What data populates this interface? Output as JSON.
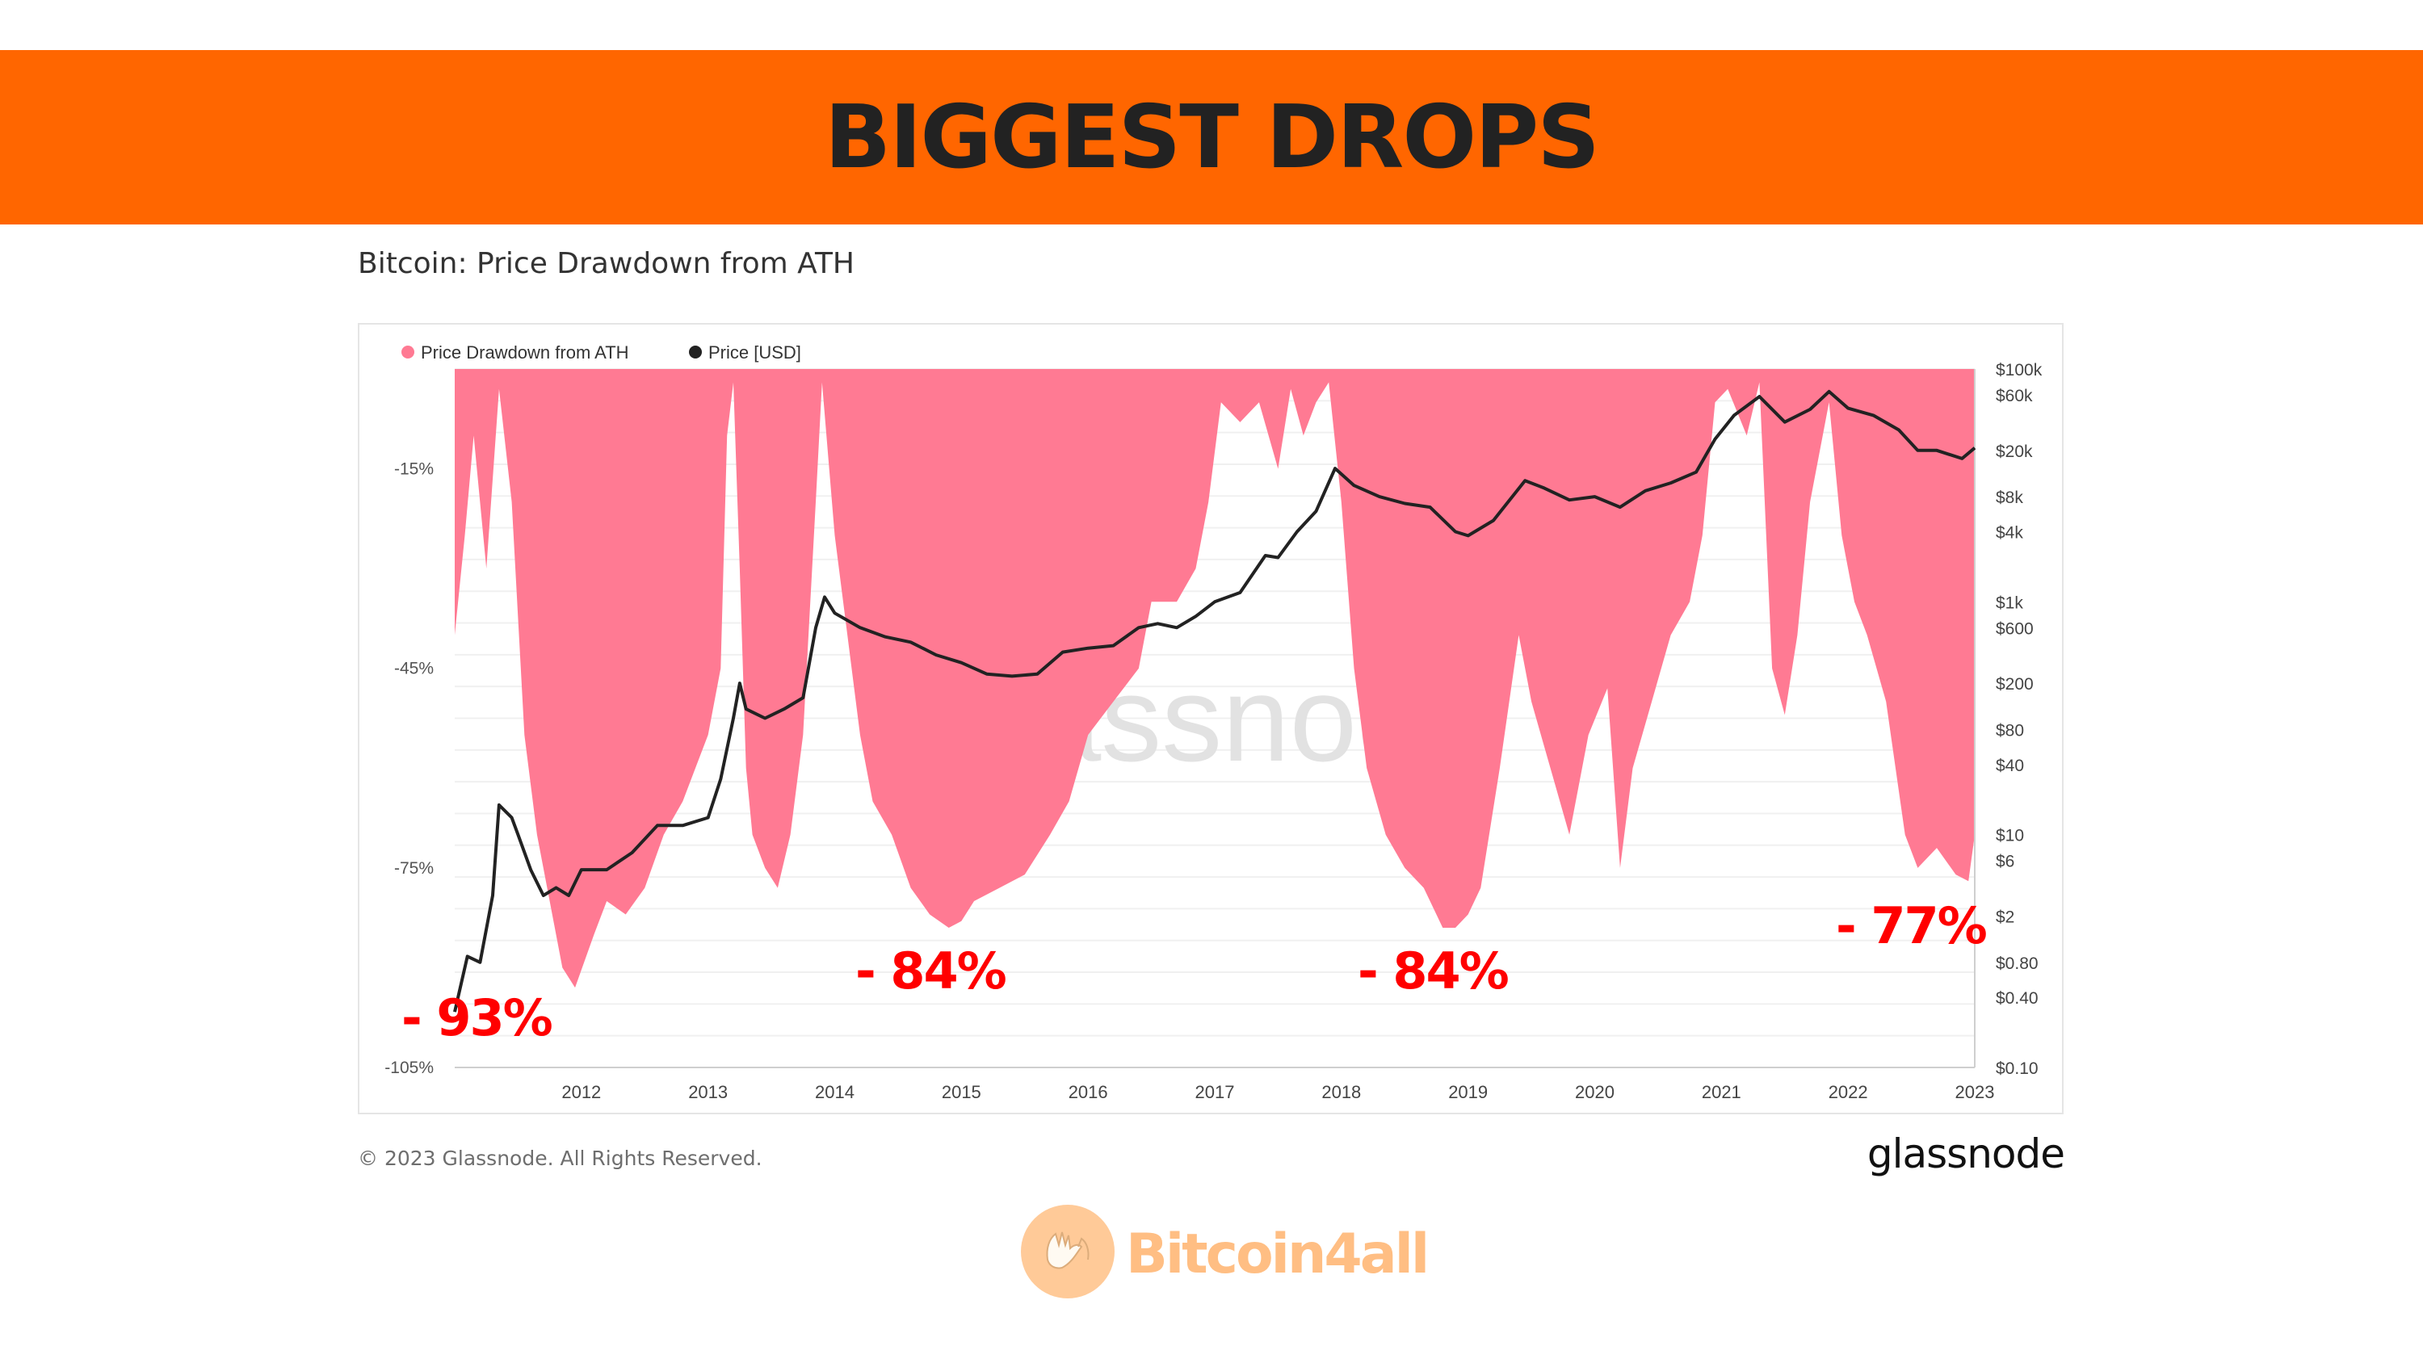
{
  "banner": {
    "title": "BIGGEST DROPS"
  },
  "chart": {
    "subtitle": "Bitcoin: Price Drawdown from ATH",
    "watermark": "glassnode",
    "legend": [
      {
        "label": "Price Drawdown from ATH",
        "color": "#ff7a93"
      },
      {
        "label": "Price [USD]",
        "color": "#222222"
      }
    ],
    "drawdown_labels": [
      "- 93%",
      "- 84%",
      "- 84%",
      "- 77%"
    ]
  },
  "footer": {
    "copyright": "© 2023 Glassnode. All Rights Reserved.",
    "brand": "glassnode"
  },
  "bottom_logo": {
    "text": "Bitcoin4all",
    "icon": "hands-icon"
  },
  "colors": {
    "banner": "#ff6600",
    "drawdown_fill": "#ff7a93",
    "price_line": "#222222",
    "annotation": "#ff0000",
    "logo": "#ff8a1f"
  },
  "chart_data": {
    "type": "area",
    "title": "Bitcoin: Price Drawdown from ATH",
    "xlabel": "",
    "ylabel": "",
    "x_ticks": [
      "2012",
      "2013",
      "2014",
      "2015",
      "2016",
      "2017",
      "2018",
      "2019",
      "2020",
      "2021",
      "2022",
      "2023"
    ],
    "y_left_ticks": [
      "-15%",
      "-45%",
      "-75%",
      "-105%"
    ],
    "y_left_range": [
      -105,
      0
    ],
    "y_right_ticks": [
      "$100k",
      "$60k",
      "$20k",
      "$8k",
      "$4k",
      "$1k",
      "$600",
      "$200",
      "$80",
      "$40",
      "$10",
      "$6",
      "$2",
      "$0.80",
      "$0.40",
      "$0.10"
    ],
    "y_right_range": [
      0.1,
      100000
    ],
    "y_right_scale": "log",
    "grid": true,
    "legend_position": "top-left",
    "series": [
      {
        "name": "Price Drawdown from ATH",
        "axis": "left",
        "type": "area",
        "x": [
          2011.0,
          2011.08,
          2011.15,
          2011.25,
          2011.35,
          2011.45,
          2011.55,
          2011.65,
          2011.75,
          2011.85,
          2011.95,
          2012.1,
          2012.2,
          2012.35,
          2012.5,
          2012.65,
          2012.8,
          2012.9,
          2013.0,
          2013.1,
          2013.15,
          2013.2,
          2013.25,
          2013.3,
          2013.35,
          2013.45,
          2013.55,
          2013.65,
          2013.75,
          2013.85,
          2013.9,
          2014.0,
          2014.1,
          2014.2,
          2014.3,
          2014.45,
          2014.6,
          2014.75,
          2014.9,
          2015.0,
          2015.1,
          2015.3,
          2015.5,
          2015.7,
          2015.85,
          2016.0,
          2016.2,
          2016.4,
          2016.5,
          2016.7,
          2016.85,
          2016.95,
          2017.05,
          2017.2,
          2017.35,
          2017.5,
          2017.6,
          2017.7,
          2017.8,
          2017.9,
          2018.0,
          2018.1,
          2018.2,
          2018.35,
          2018.5,
          2018.65,
          2018.8,
          2018.9,
          2019.0,
          2019.1,
          2019.25,
          2019.4,
          2019.5,
          2019.65,
          2019.8,
          2019.95,
          2020.1,
          2020.2,
          2020.3,
          2020.45,
          2020.6,
          2020.75,
          2020.85,
          2020.95,
          2021.05,
          2021.2,
          2021.3,
          2021.4,
          2021.5,
          2021.6,
          2021.7,
          2021.85,
          2021.95,
          2022.05,
          2022.15,
          2022.3,
          2022.45,
          2022.55,
          2022.7,
          2022.85,
          2022.95,
          2023.0
        ],
        "values": [
          -40,
          -25,
          -10,
          -30,
          -3,
          -20,
          -55,
          -70,
          -80,
          -90,
          -93,
          -85,
          -80,
          -82,
          -78,
          -70,
          -65,
          -60,
          -55,
          -45,
          -10,
          -2,
          -30,
          -60,
          -70,
          -75,
          -78,
          -70,
          -55,
          -20,
          -2,
          -25,
          -40,
          -55,
          -65,
          -70,
          -78,
          -82,
          -84,
          -83,
          -80,
          -78,
          -76,
          -70,
          -65,
          -55,
          -50,
          -45,
          -35,
          -35,
          -30,
          -20,
          -5,
          -8,
          -5,
          -15,
          -3,
          -10,
          -5,
          -2,
          -20,
          -45,
          -60,
          -70,
          -75,
          -78,
          -84,
          -84,
          -82,
          -78,
          -60,
          -40,
          -50,
          -60,
          -70,
          -55,
          -48,
          -75,
          -60,
          -50,
          -40,
          -35,
          -25,
          -5,
          -3,
          -10,
          -2,
          -45,
          -52,
          -40,
          -20,
          -5,
          -25,
          -35,
          -40,
          -50,
          -70,
          -75,
          -72,
          -76,
          -77,
          -70
        ]
      },
      {
        "name": "Price [USD]",
        "axis": "right",
        "type": "line",
        "x": [
          2011.0,
          2011.1,
          2011.2,
          2011.3,
          2011.35,
          2011.45,
          2011.5,
          2011.6,
          2011.7,
          2011.8,
          2011.9,
          2012.0,
          2012.2,
          2012.4,
          2012.6,
          2012.8,
          2013.0,
          2013.1,
          2013.2,
          2013.25,
          2013.3,
          2013.45,
          2013.6,
          2013.75,
          2013.85,
          2013.92,
          2014.0,
          2014.2,
          2014.4,
          2014.6,
          2014.8,
          2015.0,
          2015.2,
          2015.4,
          2015.6,
          2015.8,
          2016.0,
          2016.2,
          2016.4,
          2016.55,
          2016.7,
          2016.85,
          2017.0,
          2017.2,
          2017.4,
          2017.5,
          2017.65,
          2017.8,
          2017.95,
          2018.1,
          2018.3,
          2018.5,
          2018.7,
          2018.9,
          2019.0,
          2019.2,
          2019.45,
          2019.6,
          2019.8,
          2020.0,
          2020.2,
          2020.4,
          2020.6,
          2020.8,
          2020.95,
          2021.1,
          2021.3,
          2021.5,
          2021.7,
          2021.85,
          2022.0,
          2022.2,
          2022.4,
          2022.55,
          2022.7,
          2022.9,
          2023.0
        ],
        "values": [
          0.3,
          0.9,
          0.8,
          3,
          18,
          14,
          10,
          5,
          3,
          3.5,
          3,
          5,
          5,
          7,
          12,
          12,
          14,
          30,
          100,
          200,
          120,
          100,
          120,
          150,
          600,
          1100,
          800,
          600,
          500,
          450,
          350,
          300,
          240,
          230,
          240,
          370,
          400,
          420,
          600,
          650,
          600,
          750,
          1000,
          1200,
          2500,
          2400,
          4000,
          6000,
          14000,
          10000,
          8000,
          7000,
          6500,
          4000,
          3700,
          5000,
          11000,
          9500,
          7500,
          8000,
          6500,
          9000,
          10500,
          13000,
          25000,
          40000,
          58000,
          35000,
          45000,
          64000,
          46000,
          40000,
          30000,
          20000,
          20000,
          17000,
          21000
        ]
      }
    ]
  }
}
